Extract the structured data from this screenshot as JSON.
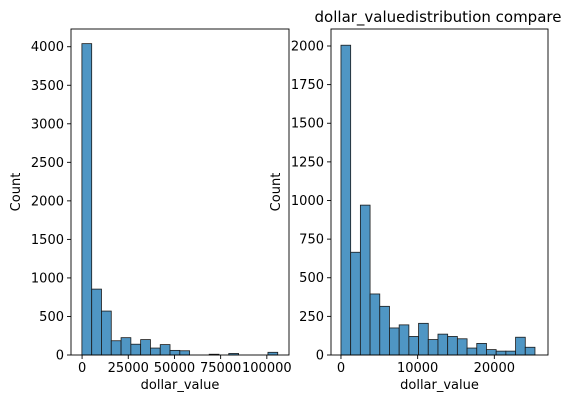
{
  "figure": {
    "title": "dollar_valuedistribution compare"
  },
  "colors": {
    "bar_fill": "#4f96c4",
    "bar_edge": "#1a1a1a",
    "axis": "#000000",
    "background": "#ffffff"
  },
  "chart_data": [
    {
      "type": "bar",
      "subtype": "histogram",
      "title": "",
      "xlabel": "dollar_value",
      "ylabel": "Count",
      "xlim": [
        -6000,
        112000
      ],
      "ylim": [
        0,
        4230
      ],
      "bin_width": 5300,
      "bin_start": -100,
      "values": [
        4040,
        855,
        570,
        185,
        225,
        140,
        200,
        90,
        135,
        60,
        55,
        0,
        0,
        10,
        0,
        20,
        0,
        0,
        0,
        35
      ],
      "x_ticks": [
        0,
        25000,
        50000,
        75000,
        100000
      ],
      "x_tick_labels": [
        "0",
        "25000",
        "50000",
        "75000",
        "100000"
      ],
      "y_ticks": [
        0,
        500,
        1000,
        1500,
        2000,
        2500,
        3000,
        3500,
        4000
      ],
      "y_tick_labels": [
        "0",
        "500",
        "1000",
        "1500",
        "2000",
        "2500",
        "3000",
        "3500",
        "4000"
      ],
      "grid": false
    },
    {
      "type": "bar",
      "subtype": "histogram",
      "title": "dollar_valuedistribution compare",
      "xlabel": "dollar_value",
      "ylabel": "Count",
      "xlim": [
        -1300,
        27000
      ],
      "ylim": [
        0,
        2110
      ],
      "bin_width": 1265,
      "bin_start": 0,
      "values": [
        2005,
        665,
        970,
        395,
        315,
        175,
        195,
        120,
        205,
        100,
        135,
        120,
        105,
        45,
        75,
        35,
        25,
        25,
        115,
        50
      ],
      "x_ticks": [
        0,
        10000,
        20000
      ],
      "x_tick_labels": [
        "0",
        "10000",
        "20000"
      ],
      "y_ticks": [
        0,
        250,
        500,
        750,
        1000,
        1250,
        1500,
        1750,
        2000
      ],
      "y_tick_labels": [
        "0",
        "250",
        "500",
        "750",
        "1000",
        "1250",
        "1500",
        "1750",
        "2000"
      ],
      "grid": false
    }
  ]
}
